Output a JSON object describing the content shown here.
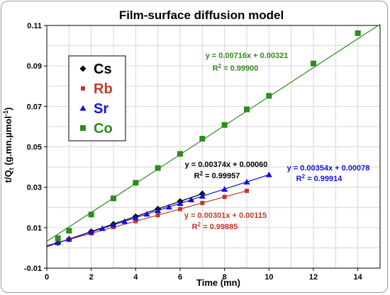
{
  "chart_data": {
    "type": "scatter",
    "title": "Film-surface diffusion model",
    "xlabel": "Time (mn)",
    "ylabel": "t/Q",
    "ylabel_sub": "t",
    "ylabel_rest": " (g.mn.µmol",
    "ylabel_sup": "-1",
    "ylabel_end": ")",
    "xlim": [
      0,
      15
    ],
    "ylim": [
      -0.01,
      0.11
    ],
    "xticks": [
      "0",
      "2",
      "4",
      "6",
      "8",
      "10",
      "12",
      "14"
    ],
    "yticks": [
      "-0.01",
      "0.01",
      "0.03",
      "0.05",
      "0.07",
      "0.09",
      "0.11"
    ],
    "grid": true,
    "legend_position": "top-left",
    "series": [
      {
        "name": "Cs",
        "color": "#000000",
        "marker": "diamond",
        "x": [
          0.5,
          1,
          2,
          3,
          4,
          5,
          6,
          7
        ],
        "y": [
          0.0025,
          0.0044,
          0.0081,
          0.0118,
          0.0155,
          0.0193,
          0.023,
          0.0268
        ],
        "fit": {
          "slope": 0.00374,
          "intercept": 0.0006,
          "x_end": 7
        },
        "equation": "y = 0.00374x + 0.00060",
        "r2_prefix": "R",
        "r2_sup": "2",
        "r2_value": " = 0.99957"
      },
      {
        "name": "Rb",
        "color": "#c0392b",
        "marker": "square",
        "x": [
          0.5,
          1,
          2,
          3,
          4,
          5,
          6,
          7,
          8,
          9
        ],
        "y": [
          0.0025,
          0.0042,
          0.0072,
          0.0103,
          0.0132,
          0.0162,
          0.0192,
          0.0222,
          0.0252,
          0.0282
        ],
        "fit": {
          "slope": 0.00301,
          "intercept": 0.00115,
          "x_end": 9
        },
        "equation": "y = 0.00301x + 0.00115",
        "r2_prefix": "R",
        "r2_sup": "2",
        "r2_value": " = 0.99885"
      },
      {
        "name": "Sr",
        "color": "#1010e0",
        "marker": "triangle",
        "x": [
          0.5,
          1,
          2,
          2.5,
          3,
          3.5,
          4,
          4.5,
          5,
          5.5,
          6,
          6.5,
          7,
          8,
          9,
          10
        ],
        "y": [
          0.0027,
          0.0043,
          0.0079,
          0.0096,
          0.0114,
          0.0131,
          0.0149,
          0.0167,
          0.0185,
          0.0202,
          0.022,
          0.0238,
          0.0256,
          0.029,
          0.0326,
          0.0362
        ],
        "fit": {
          "slope": 0.00354,
          "intercept": 0.00078,
          "x_end": 10
        },
        "equation": "y = 0.00354x + 0.00078",
        "r2_prefix": "R",
        "r2_sup": "2",
        "r2_value": " = 0.99914"
      },
      {
        "name": "Co",
        "color": "#2e8b1e",
        "marker": "square",
        "x": [
          0.5,
          1,
          2,
          3,
          4,
          5,
          6,
          7,
          8,
          9,
          10,
          12,
          14
        ],
        "y": [
          0.0048,
          0.0085,
          0.0165,
          0.0245,
          0.0322,
          0.0395,
          0.0465,
          0.054,
          0.0608,
          0.0685,
          0.0752,
          0.0912,
          0.1062
        ],
        "fit": {
          "slope": 0.00716,
          "intercept": 0.00321,
          "x_end": 15
        },
        "equation": "y = 0.00716x + 0.00321",
        "r2_prefix": "R",
        "r2_sup": "2",
        "r2_value": " = 0.99900"
      }
    ]
  }
}
